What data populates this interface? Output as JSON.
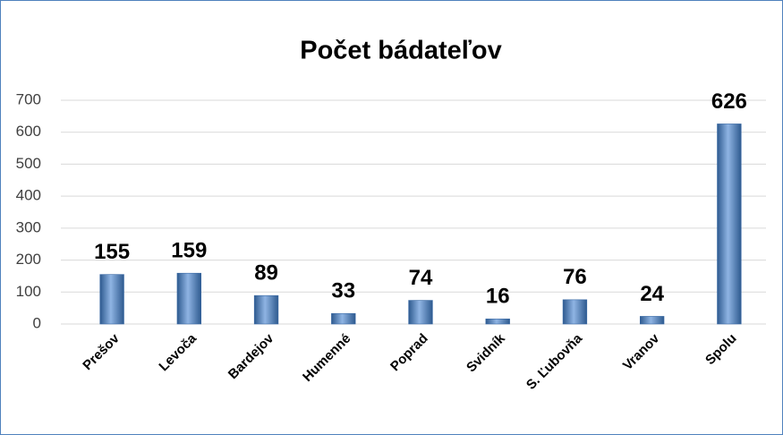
{
  "chart_data": {
    "type": "bar",
    "title": "Počet bádateľov",
    "categories": [
      "Prešov",
      "Levoča",
      "Bardejov",
      "Humenné",
      "Poprad",
      "Svidník",
      "S. Ľubovňa",
      "Vranov",
      "Spolu"
    ],
    "values": [
      155,
      159,
      89,
      33,
      74,
      16,
      76,
      24,
      626
    ],
    "color": "#4f81bd",
    "ylim": [
      0,
      700
    ],
    "yticks": [
      0,
      100,
      200,
      300,
      400,
      500,
      600,
      700
    ],
    "grid": true
  }
}
